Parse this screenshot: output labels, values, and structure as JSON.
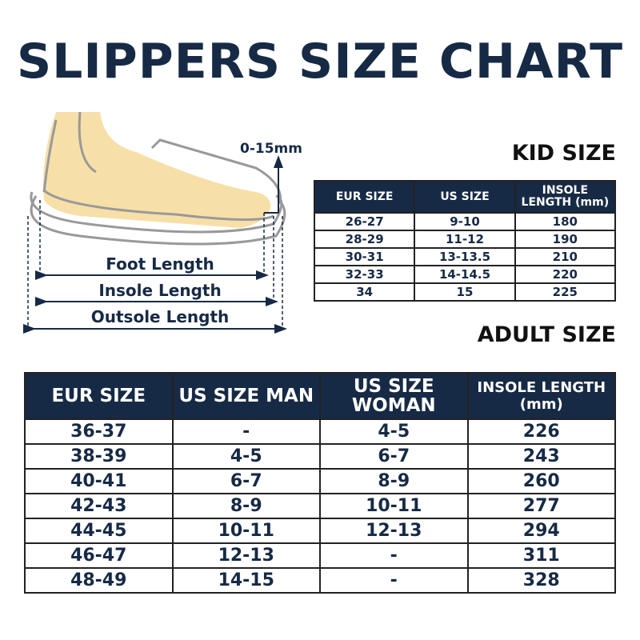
{
  "title": "SLIPPERS SIZE CHART",
  "diagram": {
    "gap_label": "0-15mm",
    "foot_length": "Foot Length",
    "insole_length": "Insole Length",
    "outsole_length": "Outsole Length"
  },
  "kid": {
    "heading": "KID SIZE",
    "headers": [
      "EUR SIZE",
      "US SIZE",
      "INSOLE LENGTH (mm)"
    ],
    "rows": [
      [
        "26-27",
        "9-10",
        "180"
      ],
      [
        "28-29",
        "11-12",
        "190"
      ],
      [
        "30-31",
        "13-13.5",
        "210"
      ],
      [
        "32-33",
        "14-14.5",
        "220"
      ],
      [
        "34",
        "15",
        "225"
      ]
    ]
  },
  "adult": {
    "heading": "ADULT SIZE",
    "headers": [
      "EUR SIZE",
      "US SIZE MAN",
      "US SIZE WOMAN",
      "INSOLE LENGTH (mm)"
    ],
    "rows": [
      [
        "36-37",
        "-",
        "4-5",
        "226"
      ],
      [
        "38-39",
        "4-5",
        "6-7",
        "243"
      ],
      [
        "40-41",
        "6-7",
        "8-9",
        "260"
      ],
      [
        "42-43",
        "8-9",
        "10-11",
        "277"
      ],
      [
        "44-45",
        "10-11",
        "12-13",
        "294"
      ],
      [
        "46-47",
        "12-13",
        "-",
        "311"
      ],
      [
        "48-49",
        "14-15",
        "-",
        "328"
      ]
    ]
  },
  "colors": {
    "navy": "#172a45",
    "skin": "#f7dfa8"
  }
}
